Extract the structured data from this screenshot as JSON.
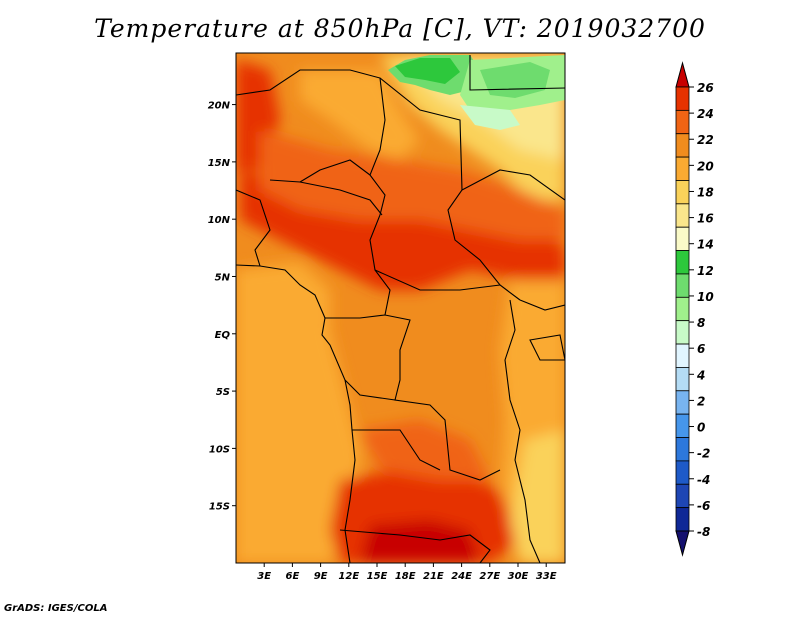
{
  "title": "Temperature at 850hPa [C], VT: 2019032700",
  "credit": "GrADS: IGES/COLA",
  "map": {
    "lat_range": [
      -20,
      24.5
    ],
    "lon_range": [
      0,
      35
    ],
    "lat_ticks": [
      {
        "value": 20,
        "label": "20N"
      },
      {
        "value": 15,
        "label": "15N"
      },
      {
        "value": 10,
        "label": "10N"
      },
      {
        "value": 5,
        "label": "5N"
      },
      {
        "value": 0,
        "label": "EQ"
      },
      {
        "value": -5,
        "label": "5S"
      },
      {
        "value": -10,
        "label": "10S"
      },
      {
        "value": -15,
        "label": "15S"
      }
    ],
    "lon_ticks": [
      {
        "value": 3,
        "label": "3E"
      },
      {
        "value": 6,
        "label": "6E"
      },
      {
        "value": 9,
        "label": "9E"
      },
      {
        "value": 12,
        "label": "12E"
      },
      {
        "value": 15,
        "label": "15E"
      },
      {
        "value": 18,
        "label": "18E"
      },
      {
        "value": 21,
        "label": "21E"
      },
      {
        "value": 24,
        "label": "24E"
      },
      {
        "value": 27,
        "label": "27E"
      },
      {
        "value": 30,
        "label": "30E"
      },
      {
        "value": 33,
        "label": "33E"
      }
    ]
  },
  "colorbar": {
    "labels": [
      "26",
      "24",
      "22",
      "20",
      "18",
      "16",
      "14",
      "12",
      "10",
      "8",
      "6",
      "4",
      "2",
      "0",
      "-2",
      "-4",
      "-6",
      "-8"
    ],
    "colors": [
      "#c80000",
      "#e63200",
      "#f06414",
      "#f08c1e",
      "#faaa32",
      "#fad25a",
      "#fae68c",
      "#fafac8",
      "#2dc83c",
      "#6edc6e",
      "#a0f08c",
      "#c8fac8",
      "#e1f5ff",
      "#b4dcf5",
      "#78b4f0",
      "#4696eb",
      "#2d78dc",
      "#1e5ac8",
      "#1e46b4",
      "#0f2896",
      "#14106e"
    ]
  }
}
